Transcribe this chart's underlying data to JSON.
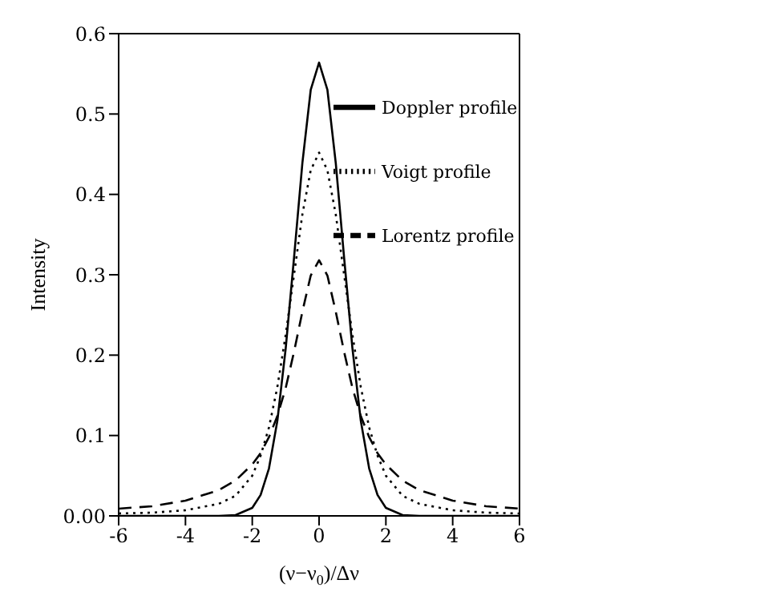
{
  "chart_data": {
    "type": "line",
    "xlabel": "(ν−ν$_{0}$)/Δν",
    "ylabel": "Intensity",
    "x": [
      -6,
      -5,
      -4,
      -3,
      -2.5,
      -2,
      -1.75,
      -1.5,
      -1.25,
      -1,
      -0.75,
      -0.5,
      -0.25,
      0,
      0.25,
      0.5,
      0.75,
      1,
      1.25,
      1.5,
      1.75,
      2,
      2.5,
      3,
      4,
      5,
      6
    ],
    "series": [
      {
        "name": "Doppler profile",
        "color": "#000000",
        "line_style": "solid",
        "values": [
          0,
          0,
          0,
          0,
          0.001,
          0.01,
          0.026,
          0.059,
          0.118,
          0.208,
          0.321,
          0.439,
          0.53,
          0.564,
          0.53,
          0.439,
          0.321,
          0.208,
          0.118,
          0.059,
          0.026,
          0.01,
          0.001,
          0,
          0,
          0,
          0
        ]
      },
      {
        "name": "Voigt profile",
        "color": "#000000",
        "line_style": "dotted",
        "values": [
          0.003,
          0.004,
          0.007,
          0.015,
          0.025,
          0.05,
          0.075,
          0.11,
          0.16,
          0.225,
          0.3,
          0.375,
          0.43,
          0.452,
          0.43,
          0.375,
          0.3,
          0.225,
          0.16,
          0.11,
          0.075,
          0.05,
          0.025,
          0.015,
          0.007,
          0.004,
          0.003
        ]
      },
      {
        "name": "Lorentz profile",
        "color": "#000000",
        "line_style": "dashed",
        "values": [
          0.009,
          0.012,
          0.019,
          0.032,
          0.044,
          0.064,
          0.078,
          0.098,
          0.124,
          0.159,
          0.204,
          0.254,
          0.299,
          0.318,
          0.299,
          0.254,
          0.204,
          0.159,
          0.124,
          0.098,
          0.078,
          0.064,
          0.044,
          0.032,
          0.019,
          0.012,
          0.009
        ]
      }
    ],
    "xlim": [
      -6,
      6
    ],
    "xticks": [
      -6,
      -4,
      -2,
      0,
      2,
      4,
      6
    ],
    "ylim": [
      0,
      0.6
    ],
    "yticks": [
      {
        "value": 0,
        "label": "0.00"
      },
      0.1,
      0.2,
      0.3,
      0.4,
      0.5,
      0.6
    ],
    "legend": "top right",
    "marker": "none"
  }
}
